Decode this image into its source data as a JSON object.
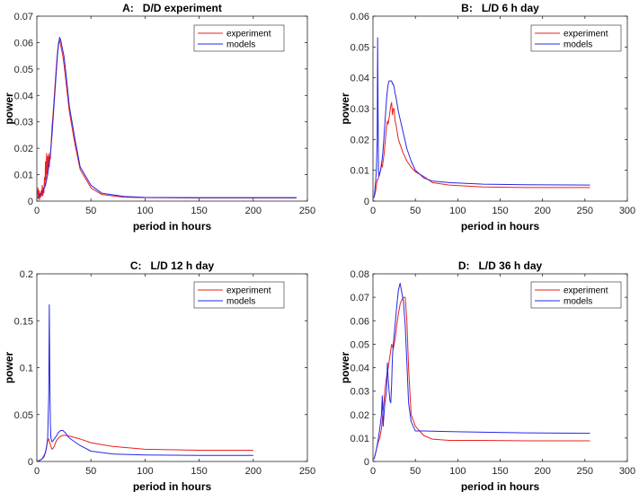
{
  "colors": {
    "experiment": "#e8201e",
    "models": "#2727e6",
    "axis": "#262626",
    "grid_text": "#262626"
  },
  "chart_data": [
    {
      "type": "line",
      "title": "A:   D/D experiment",
      "xlabel": "period in hours",
      "ylabel": "power",
      "xlim": [
        0,
        250
      ],
      "ylim": [
        0,
        0.07
      ],
      "xticks": [
        0,
        50,
        100,
        150,
        200,
        250
      ],
      "xtick_labels": [
        "0",
        "50",
        "100",
        "150",
        "200",
        "250"
      ],
      "yticks": [
        0,
        0.01,
        0.02,
        0.03,
        0.04,
        0.05,
        0.06,
        0.07
      ],
      "ytick_labels": [
        "0",
        "0.01",
        "0.02",
        "0.03",
        "0.04",
        "0.05",
        "0.06",
        "0.07"
      ],
      "legend": [
        "experiment",
        "models"
      ],
      "legend_position": "top-right",
      "series": [
        {
          "name": "experiment",
          "x": [
            0.5,
            1,
            1.5,
            2,
            2.5,
            3,
            3.5,
            4,
            4.5,
            5,
            5.5,
            6,
            6.5,
            7,
            7.5,
            8,
            8.5,
            9,
            9.5,
            10,
            10.5,
            11,
            11.5,
            12,
            12.5,
            13,
            13.5,
            14,
            15,
            16,
            17,
            18,
            19,
            20,
            21,
            22,
            23,
            24,
            25,
            27,
            30,
            35,
            40,
            50,
            60,
            80,
            100,
            150,
            200,
            240
          ],
          "y": [
            0.002,
            0.005,
            0.001,
            0.004,
            0.0005,
            0.003,
            0.0015,
            0.004,
            0.002,
            0.006,
            0.002,
            0.005,
            0.003,
            0.009,
            0.006,
            0.015,
            0.008,
            0.018,
            0.01,
            0.017,
            0.012,
            0.018,
            0.013,
            0.017,
            0.016,
            0.02,
            0.024,
            0.028,
            0.033,
            0.039,
            0.045,
            0.051,
            0.056,
            0.06,
            0.061,
            0.059,
            0.057,
            0.055,
            0.052,
            0.045,
            0.034,
            0.022,
            0.012,
            0.005,
            0.0025,
            0.0015,
            0.0013,
            0.0012,
            0.0012,
            0.0012
          ]
        },
        {
          "name": "models",
          "x": [
            0.5,
            1,
            2,
            3,
            4,
            5,
            6,
            7,
            8,
            9,
            10,
            11,
            12,
            13,
            14,
            15,
            16,
            17,
            18,
            19,
            20,
            21,
            22,
            23,
            24,
            25,
            27,
            30,
            35,
            40,
            50,
            60,
            80,
            100,
            150,
            200,
            240
          ],
          "y": [
            0.001,
            0.0015,
            0.002,
            0.0025,
            0.003,
            0.0035,
            0.004,
            0.005,
            0.006,
            0.008,
            0.01,
            0.013,
            0.016,
            0.02,
            0.025,
            0.031,
            0.037,
            0.043,
            0.049,
            0.055,
            0.059,
            0.062,
            0.061,
            0.059,
            0.057,
            0.055,
            0.048,
            0.036,
            0.024,
            0.013,
            0.006,
            0.003,
            0.0018,
            0.0014,
            0.0013,
            0.0013,
            0.0013
          ]
        }
      ]
    },
    {
      "type": "line",
      "title": "B:   L/D 6 h day",
      "xlabel": "period in hours",
      "ylabel": "power",
      "xlim": [
        0,
        300
      ],
      "ylim": [
        0,
        0.06
      ],
      "xticks": [
        0,
        50,
        100,
        150,
        200,
        250,
        300
      ],
      "xtick_labels": [
        "0",
        "50",
        "100",
        "150",
        "200",
        "250",
        "300"
      ],
      "yticks": [
        0,
        0.01,
        0.02,
        0.03,
        0.04,
        0.05,
        0.06
      ],
      "ytick_labels": [
        "0",
        "0.01",
        "0.02",
        "0.03",
        "0.04",
        "0.05",
        "0.06"
      ],
      "legend": [
        "experiment",
        "models"
      ],
      "legend_position": "top-right",
      "series": [
        {
          "name": "experiment",
          "x": [
            1,
            2,
            3,
            4,
            5,
            6,
            7,
            8,
            9,
            10,
            11,
            12,
            13,
            14,
            15,
            16,
            17,
            18,
            19,
            20,
            21,
            22,
            23,
            24,
            25,
            26,
            27,
            30,
            35,
            40,
            45,
            50,
            60,
            70,
            90,
            130,
            180,
            256
          ],
          "y": [
            0.001,
            0.002,
            0.003,
            0.005,
            0.007,
            0.007,
            0.008,
            0.009,
            0.01,
            0.012,
            0.011,
            0.013,
            0.015,
            0.018,
            0.021,
            0.024,
            0.026,
            0.025,
            0.027,
            0.029,
            0.031,
            0.032,
            0.028,
            0.03,
            0.03,
            0.026,
            0.025,
            0.02,
            0.016,
            0.013,
            0.011,
            0.0095,
            0.008,
            0.006,
            0.0052,
            0.0046,
            0.0044,
            0.0044
          ]
        },
        {
          "name": "models",
          "x": [
            1,
            2,
            3,
            4,
            5,
            5.5,
            6,
            6.5,
            7,
            8,
            9,
            10,
            11,
            12,
            13,
            14,
            15,
            16,
            17,
            18,
            19,
            20,
            21,
            22,
            23,
            24,
            25,
            26,
            27,
            30,
            35,
            40,
            45,
            50,
            60,
            70,
            90,
            130,
            180,
            256
          ],
          "y": [
            0.001,
            0.003,
            0.006,
            0.01,
            0.02,
            0.053,
            0.03,
            0.01,
            0.008,
            0.009,
            0.01,
            0.012,
            0.014,
            0.017,
            0.021,
            0.025,
            0.029,
            0.033,
            0.036,
            0.038,
            0.039,
            0.039,
            0.039,
            0.039,
            0.038,
            0.038,
            0.037,
            0.035,
            0.034,
            0.029,
            0.023,
            0.017,
            0.013,
            0.01,
            0.0075,
            0.0065,
            0.006,
            0.0055,
            0.0053,
            0.0052
          ]
        }
      ]
    },
    {
      "type": "line",
      "title": "C:   L/D 12 h day",
      "xlabel": "period in hours",
      "ylabel": "power",
      "xlim": [
        0,
        250
      ],
      "ylim": [
        0,
        0.2
      ],
      "xticks": [
        0,
        50,
        100,
        150,
        200,
        250
      ],
      "xtick_labels": [
        "0",
        "50",
        "100",
        "150",
        "200",
        "250"
      ],
      "yticks": [
        0,
        0.05,
        0.1,
        0.15,
        0.2
      ],
      "ytick_labels": [
        "0",
        "0.05",
        "0.1",
        "0.15",
        "0.2"
      ],
      "legend": [
        "experiment",
        "models"
      ],
      "legend_position": "top-right",
      "series": [
        {
          "name": "experiment",
          "x": [
            1,
            2,
            3,
            4,
            5,
            6,
            7,
            8,
            9,
            10,
            11,
            12,
            13,
            14,
            15,
            16,
            17,
            18,
            20,
            22,
            25,
            30,
            40,
            50,
            70,
            100,
            150,
            200
          ],
          "y": [
            0.0005,
            0.001,
            0.0015,
            0.002,
            0.003,
            0.004,
            0.006,
            0.01,
            0.016,
            0.022,
            0.024,
            0.02,
            0.016,
            0.013,
            0.014,
            0.016,
            0.019,
            0.022,
            0.025,
            0.027,
            0.028,
            0.027,
            0.024,
            0.02,
            0.016,
            0.013,
            0.012,
            0.012
          ]
        },
        {
          "name": "models",
          "x": [
            1,
            2,
            3,
            4,
            5,
            6,
            7,
            8,
            9,
            10,
            11,
            11.5,
            12,
            12.5,
            13,
            14,
            15,
            16,
            18,
            20,
            22,
            24,
            26,
            30,
            40,
            50,
            70,
            100,
            150,
            200
          ],
          "y": [
            0.0005,
            0.001,
            0.0015,
            0.002,
            0.003,
            0.005,
            0.007,
            0.01,
            0.015,
            0.025,
            0.07,
            0.167,
            0.09,
            0.04,
            0.025,
            0.021,
            0.022,
            0.024,
            0.027,
            0.031,
            0.033,
            0.033,
            0.031,
            0.025,
            0.017,
            0.011,
            0.008,
            0.007,
            0.0065,
            0.0065
          ]
        }
      ]
    },
    {
      "type": "line",
      "title": "D:   L/D 36 h day",
      "xlabel": "period in hours",
      "ylabel": "power",
      "xlim": [
        0,
        300
      ],
      "ylim": [
        0,
        0.08
      ],
      "xticks": [
        0,
        50,
        100,
        150,
        200,
        250,
        300
      ],
      "xtick_labels": [
        "0",
        "50",
        "100",
        "150",
        "200",
        "250",
        "300"
      ],
      "yticks": [
        0,
        0.01,
        0.02,
        0.03,
        0.04,
        0.05,
        0.06,
        0.07,
        0.08
      ],
      "ytick_labels": [
        "0",
        "0.01",
        "0.02",
        "0.03",
        "0.04",
        "0.05",
        "0.06",
        "0.07",
        "0.08"
      ],
      "legend": [
        "experiment",
        "models"
      ],
      "legend_position": "top-right",
      "series": [
        {
          "name": "experiment",
          "x": [
            1,
            2,
            4,
            6,
            8,
            10,
            12,
            14,
            16,
            18,
            20,
            22,
            24,
            26,
            28,
            30,
            32,
            34,
            36,
            38,
            40,
            42,
            45,
            50,
            60,
            70,
            90,
            130,
            180,
            256
          ],
          "y": [
            0.001,
            0.002,
            0.005,
            0.008,
            0.01,
            0.014,
            0.022,
            0.03,
            0.036,
            0.04,
            0.045,
            0.05,
            0.048,
            0.052,
            0.058,
            0.063,
            0.067,
            0.069,
            0.07,
            0.07,
            0.06,
            0.04,
            0.02,
            0.015,
            0.011,
            0.0095,
            0.009,
            0.009,
            0.0088,
            0.0088
          ]
        },
        {
          "name": "models",
          "x": [
            1,
            2,
            4,
            6,
            8,
            10,
            11,
            12,
            13,
            14,
            16,
            17,
            18,
            19,
            20,
            21,
            22,
            23,
            24,
            26,
            28,
            30,
            32,
            34,
            36,
            38,
            40,
            42,
            45,
            50,
            60,
            80,
            130,
            180,
            256
          ],
          "y": [
            0.001,
            0.002,
            0.005,
            0.009,
            0.014,
            0.02,
            0.028,
            0.015,
            0.02,
            0.025,
            0.03,
            0.042,
            0.035,
            0.03,
            0.026,
            0.025,
            0.033,
            0.045,
            0.05,
            0.058,
            0.066,
            0.073,
            0.076,
            0.072,
            0.068,
            0.058,
            0.042,
            0.025,
            0.017,
            0.013,
            0.013,
            0.0128,
            0.0125,
            0.0122,
            0.012
          ]
        }
      ]
    }
  ]
}
